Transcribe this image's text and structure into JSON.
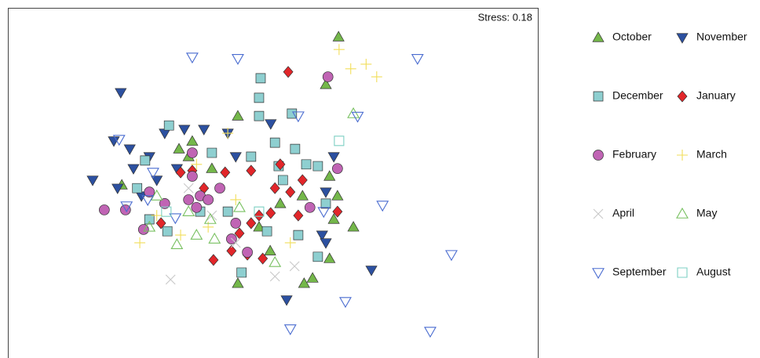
{
  "chart_data": {
    "type": "scatter",
    "annotation": "Stress: 0.18",
    "xlim": [
      0,
      100
    ],
    "ylim": [
      0,
      100
    ],
    "series": [
      {
        "name": "October",
        "marker": "triangle-up",
        "color": "#74b74a",
        "x": [
          62.4,
          60.0,
          43.4,
          34.8,
          32.3,
          65.2,
          60.7,
          57.5,
          55.9,
          43.4,
          49.5,
          38.5,
          21.5,
          60.7,
          62.2,
          55.6,
          51.4,
          34.1,
          47.4,
          61.5
        ],
        "values": [
          91.7,
          78.1,
          69.1,
          61.9,
          59.7,
          37.4,
          28.4,
          22.8,
          21.3,
          21.3,
          30.6,
          54.1,
          49.4,
          51.9,
          46.3,
          46.3,
          44.1,
          57.5,
          37.4,
          39.6
        ]
      },
      {
        "name": "November",
        "marker": "triangle-down",
        "color": "#2c50a0",
        "x": [
          21.3,
          16.0,
          20.0,
          23.0,
          26.7,
          29.6,
          33.3,
          37.0,
          41.5,
          49.6,
          28.1,
          25.2,
          61.5,
          60.0,
          59.3,
          60.0,
          68.6,
          52.6,
          20.7,
          23.7,
          43.0,
          31.9
        ],
        "values": [
          75.8,
          50.8,
          62.0,
          59.7,
          57.5,
          64.2,
          65.3,
          65.3,
          64.2,
          66.9,
          50.8,
          46.3,
          57.5,
          47.4,
          35.1,
          32.9,
          25.1,
          16.6,
          48.5,
          54.1,
          57.5,
          54.1
        ]
      },
      {
        "name": "December",
        "marker": "square",
        "color": "#8ecfd0",
        "x": [
          47.7,
          47.4,
          53.6,
          47.4,
          30.4,
          50.4,
          54.2,
          45.9,
          56.3,
          58.5,
          51.1,
          25.9,
          24.4,
          26.7,
          30.1,
          41.5,
          48.9,
          54.8,
          60.0,
          58.5,
          44.1,
          38.5,
          36.3,
          51.9
        ],
        "values": [
          79.9,
          74.3,
          69.8,
          69.1,
          66.4,
          61.5,
          59.7,
          57.5,
          55.3,
          54.8,
          54.8,
          56.4,
          48.5,
          39.6,
          36.2,
          41.8,
          36.2,
          35.1,
          44.1,
          28.9,
          24.4,
          58.6,
          41.8,
          50.8
        ]
      },
      {
        "name": "January",
        "marker": "diamond",
        "color": "#e2262a",
        "x": [
          52.9,
          32.6,
          34.8,
          41.0,
          45.9,
          50.4,
          51.4,
          53.3,
          47.4,
          49.6,
          45.9,
          43.7,
          42.2,
          38.8,
          45.2,
          48.1,
          62.2,
          28.9,
          37.0,
          54.8,
          55.6
        ],
        "values": [
          81.7,
          53.0,
          53.5,
          53.0,
          53.5,
          48.5,
          55.3,
          47.4,
          40.7,
          41.4,
          38.5,
          35.6,
          30.6,
          28.0,
          29.5,
          28.4,
          41.8,
          38.5,
          48.5,
          40.7,
          50.8
        ]
      },
      {
        "name": "February",
        "marker": "circle",
        "color": "#c064b4",
        "x": [
          60.4,
          34.8,
          18.2,
          22.2,
          25.6,
          26.7,
          29.6,
          34.1,
          36.3,
          37.8,
          35.6,
          43.0,
          42.2,
          45.2,
          57.0,
          62.2,
          34.8,
          40.0
        ],
        "values": [
          80.3,
          58.6,
          42.3,
          42.3,
          36.7,
          47.4,
          44.1,
          45.2,
          46.3,
          45.2,
          43.0,
          38.5,
          34.0,
          30.2,
          43.0,
          54.1,
          51.9,
          48.5
        ]
      },
      {
        "name": "March",
        "marker": "plus",
        "color": "#f2de5a",
        "x": [
          62.5,
          64.7,
          67.6,
          69.6,
          24.9,
          32.6,
          28.1,
          37.8,
          41.5,
          53.3,
          35.6,
          43.0
        ],
        "values": [
          88.1,
          82.6,
          83.9,
          80.3,
          32.9,
          35.1,
          40.7,
          37.4,
          64.2,
          32.9,
          55.3,
          45.2
        ]
      },
      {
        "name": "April",
        "marker": "x",
        "color": "#c8c8c8",
        "x": [
          30.7,
          50.4,
          54.1,
          38.5,
          34.1,
          43.0
        ],
        "values": [
          22.4,
          23.3,
          26.2,
          40.7,
          48.5,
          32.9
        ]
      },
      {
        "name": "May",
        "marker": "triangle-up-open",
        "color": "#78c060",
        "x": [
          31.9,
          35.6,
          39.0,
          26.7,
          34.1,
          38.2,
          50.4,
          65.2,
          43.7,
          28.1
        ],
        "values": [
          32.4,
          35.1,
          34.0,
          37.4,
          41.8,
          39.6,
          27.3,
          69.8,
          43.0,
          46.3
        ]
      },
      {
        "name": "September",
        "marker": "triangle-down-open",
        "color": "#4a6cd0",
        "x": [
          34.8,
          43.4,
          77.3,
          66.0,
          21.0,
          22.4,
          26.4,
          70.7,
          83.7,
          59.6,
          63.7,
          53.3,
          79.7,
          31.6,
          27.4,
          54.8
        ],
        "values": [
          85.9,
          85.5,
          85.5,
          69.0,
          62.4,
          43.4,
          45.2,
          43.6,
          29.5,
          41.8,
          16.1,
          8.3,
          7.6,
          40.0,
          53.0,
          69.1
        ]
      },
      {
        "name": "August",
        "marker": "square-open",
        "color": "#7ed0c4",
        "x": [
          62.5,
          29.9,
          47.4
        ],
        "values": [
          62.0,
          41.8,
          41.8
        ]
      }
    ]
  }
}
